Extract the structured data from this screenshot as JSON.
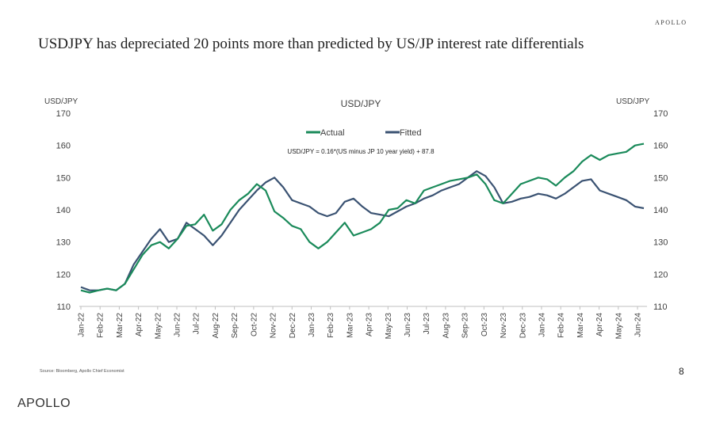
{
  "header": {
    "brand": "APOLLO",
    "title": "USDJPY has depreciated 20 points more than predicted by US/JP interest rate differentials"
  },
  "footer": {
    "source": "Source: Bloomberg, Apollo Chief Economist",
    "page_number": "8",
    "brand": "APOLLO"
  },
  "chart_data": {
    "type": "line",
    "title": "USD/JPY",
    "ylabel_left": "USD/JPY",
    "ylabel_right": "USD/JPY",
    "annotation": "USD/JPY = 0.16*(US minus JP 10 year yield) + 87.8",
    "ylim": [
      110,
      170
    ],
    "yticks": [
      "110",
      "120",
      "130",
      "140",
      "150",
      "160",
      "170"
    ],
    "legend_position": "top-center",
    "grid": false,
    "x_tick_labels": [
      "Jan-22",
      "Feb-22",
      "Mar-22",
      "Apr-22",
      "May-22",
      "Jun-22",
      "Jul-22",
      "Aug-22",
      "Sep-22",
      "Oct-22",
      "Nov-22",
      "Dec-22",
      "Jan-23",
      "Feb-23",
      "Mar-23",
      "Apr-23",
      "May-23",
      "Jun-23",
      "Jul-23",
      "Aug-23",
      "Sep-23",
      "Oct-23",
      "Nov-23",
      "Dec-23",
      "Jan-24",
      "Feb-24",
      "Mar-24",
      "Apr-24",
      "May-24",
      "Jun-24"
    ],
    "x_weeks": [
      0,
      2,
      4,
      6,
      8,
      10,
      12,
      14,
      16,
      18,
      20,
      22,
      24,
      26,
      28,
      30,
      32,
      34,
      36,
      38,
      40,
      42,
      44,
      46,
      48,
      50,
      52,
      54,
      56,
      58,
      60,
      62,
      64,
      66,
      68,
      70,
      72,
      74,
      76,
      78,
      80,
      82,
      84,
      86,
      88,
      90,
      92,
      94,
      96,
      98,
      100,
      102,
      104,
      106,
      108,
      110,
      112,
      114,
      116,
      118,
      120,
      122,
      124,
      126,
      128
    ],
    "series": [
      {
        "name": "Actual",
        "color": "#1a8a5a",
        "values": [
          115.0,
          114.3,
          115.0,
          115.5,
          115.0,
          117.0,
          121.5,
          126.0,
          129.0,
          130.0,
          128.0,
          131.0,
          135.0,
          135.5,
          138.5,
          133.5,
          135.5,
          140.0,
          143.0,
          145.0,
          148.0,
          146.0,
          139.5,
          137.5,
          135.0,
          134.0,
          130.0,
          128.0,
          130.0,
          133.0,
          136.0,
          132.0,
          133.0,
          134.0,
          136.0,
          140.0,
          140.5,
          143.0,
          142.0,
          146.0,
          147.0,
          148.0,
          149.0,
          149.5,
          150.0,
          151.0,
          148.0,
          143.0,
          142.0,
          145.0,
          148.0,
          149.0,
          150.0,
          149.5,
          147.5,
          150.0,
          152.0,
          155.0,
          157.0,
          155.5,
          157.0,
          157.5,
          158.0,
          160.0,
          160.5
        ]
      },
      {
        "name": "Fitted",
        "color": "#3a5272",
        "values": [
          116.0,
          115.0,
          115.0,
          115.5,
          115.0,
          117.0,
          123.0,
          127.0,
          131.0,
          134.0,
          130.0,
          131.0,
          136.0,
          134.0,
          132.0,
          129.0,
          132.0,
          136.0,
          140.0,
          143.0,
          146.0,
          148.5,
          150.0,
          147.0,
          143.0,
          142.0,
          141.0,
          139.0,
          138.0,
          139.0,
          142.5,
          143.5,
          141.0,
          139.0,
          138.5,
          138.0,
          139.5,
          141.0,
          142.0,
          143.5,
          144.5,
          146.0,
          147.0,
          148.0,
          150.0,
          152.0,
          150.5,
          147.0,
          142.0,
          142.5,
          143.5,
          144.0,
          145.0,
          144.5,
          143.5,
          145.0,
          147.0,
          149.0,
          149.5,
          146.0,
          145.0,
          144.0,
          143.0,
          141.0,
          140.5
        ]
      }
    ]
  }
}
